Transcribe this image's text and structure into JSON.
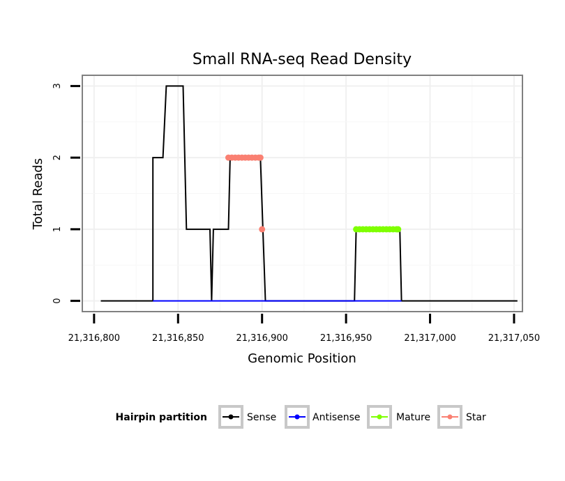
{
  "chart_data": {
    "type": "line",
    "title": "Small RNA-seq Read Density",
    "xlabel": "Genomic Position",
    "ylabel": "Total Reads",
    "xlim": [
      21316793,
      21317055
    ],
    "ylim": [
      -0.15,
      3.15
    ],
    "x_ticks": [
      21316800,
      21316850,
      21316900,
      21316950,
      21317000,
      21317050
    ],
    "x_tick_labels": [
      "21,316,800",
      "21,316,850",
      "21,316,900",
      "21,316,950",
      "21,317,000",
      "21,317,050"
    ],
    "y_ticks": [
      0,
      1,
      2,
      3
    ],
    "y_tick_labels": [
      "0",
      "1",
      "2",
      "3"
    ],
    "grid": true,
    "legend": {
      "title": "Hairpin partition",
      "position": "bottom",
      "entries": [
        {
          "label": "Sense",
          "color": "#000000"
        },
        {
          "label": "Antisense",
          "color": "#0000ff"
        },
        {
          "label": "Mature",
          "color": "#7fff00"
        },
        {
          "label": "Star",
          "color": "#fa8072"
        }
      ]
    },
    "series": [
      {
        "name": "Sense",
        "color": "#000000",
        "style": "line",
        "x": [
          21316804,
          21316835,
          21316835,
          21316841,
          21316843,
          21316853,
          21316855,
          21316869,
          21316870,
          21316871,
          21316880,
          21316881,
          21316899,
          21316902,
          21316955,
          21316956,
          21316982,
          21316983,
          21317052
        ],
        "y": [
          0,
          0,
          2,
          2,
          3,
          3,
          1,
          1,
          0,
          1,
          1,
          2,
          2,
          0,
          0,
          1,
          1,
          0,
          0
        ]
      },
      {
        "name": "Antisense",
        "color": "#0000ff",
        "style": "line",
        "x": [
          21316835,
          21316870,
          21316902,
          21316955,
          21316983
        ],
        "y": [
          0,
          0,
          0,
          0,
          0
        ]
      },
      {
        "name": "Mature",
        "color": "#7fff00",
        "style": "dots",
        "x": [
          21316956,
          21316958,
          21316960,
          21316962,
          21316964,
          21316966,
          21316968,
          21316970,
          21316972,
          21316974,
          21316976,
          21316978,
          21316980,
          21316981
        ],
        "y": [
          1,
          1,
          1,
          1,
          1,
          1,
          1,
          1,
          1,
          1,
          1,
          1,
          1,
          1
        ]
      },
      {
        "name": "Star",
        "color": "#fa8072",
        "style": "dots",
        "x": [
          21316880,
          21316882,
          21316884,
          21316886,
          21316888,
          21316890,
          21316892,
          21316894,
          21316896,
          21316898,
          21316899,
          21316900
        ],
        "y": [
          2,
          2,
          2,
          2,
          2,
          2,
          2,
          2,
          2,
          2,
          2,
          1
        ]
      }
    ]
  }
}
